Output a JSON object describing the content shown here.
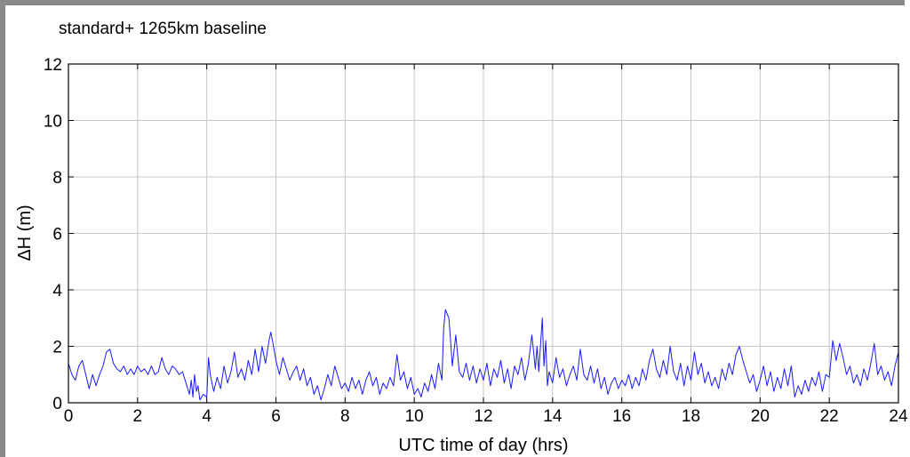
{
  "chart_data": {
    "type": "line",
    "title": "standard+ 1265km baseline",
    "xlabel": "UTC time of day (hrs)",
    "ylabel": "ΔH (m)",
    "xlim": [
      0,
      24
    ],
    "ylim": [
      0,
      12
    ],
    "x_ticks": [
      0,
      2,
      4,
      6,
      8,
      10,
      12,
      14,
      16,
      18,
      20,
      22,
      24
    ],
    "y_ticks": [
      0,
      2,
      4,
      6,
      8,
      10,
      12
    ],
    "grid": true,
    "line_color": "#1a1aff",
    "grid_color": "#c8c8c8",
    "series": [
      {
        "points": [
          [
            0.0,
            1.4
          ],
          [
            0.1,
            1.0
          ],
          [
            0.2,
            0.8
          ],
          [
            0.3,
            1.3
          ],
          [
            0.4,
            1.5
          ],
          [
            0.5,
            1.0
          ],
          [
            0.6,
            0.5
          ],
          [
            0.7,
            1.0
          ],
          [
            0.8,
            0.6
          ],
          [
            0.9,
            1.0
          ],
          [
            1.0,
            1.3
          ],
          [
            1.1,
            1.8
          ],
          [
            1.2,
            1.9
          ],
          [
            1.3,
            1.4
          ],
          [
            1.4,
            1.2
          ],
          [
            1.5,
            1.1
          ],
          [
            1.6,
            1.3
          ],
          [
            1.7,
            1.0
          ],
          [
            1.8,
            1.2
          ],
          [
            1.9,
            1.0
          ],
          [
            2.0,
            1.3
          ],
          [
            2.1,
            1.1
          ],
          [
            2.2,
            1.2
          ],
          [
            2.3,
            1.0
          ],
          [
            2.4,
            1.3
          ],
          [
            2.5,
            1.0
          ],
          [
            2.6,
            1.1
          ],
          [
            2.7,
            1.6
          ],
          [
            2.8,
            1.2
          ],
          [
            2.9,
            1.0
          ],
          [
            3.0,
            1.3
          ],
          [
            3.1,
            1.2
          ],
          [
            3.2,
            1.0
          ],
          [
            3.3,
            1.1
          ],
          [
            3.4,
            0.7
          ],
          [
            3.5,
            0.3
          ],
          [
            3.55,
            0.8
          ],
          [
            3.6,
            0.2
          ],
          [
            3.65,
            1.0
          ],
          [
            3.7,
            0.4
          ],
          [
            3.75,
            0.6
          ],
          [
            3.8,
            0.1
          ],
          [
            3.9,
            0.3
          ],
          [
            4.0,
            0.2
          ],
          [
            4.05,
            1.6
          ],
          [
            4.1,
            1.0
          ],
          [
            4.2,
            0.4
          ],
          [
            4.3,
            0.9
          ],
          [
            4.4,
            0.5
          ],
          [
            4.5,
            1.3
          ],
          [
            4.6,
            0.7
          ],
          [
            4.7,
            1.1
          ],
          [
            4.8,
            1.8
          ],
          [
            4.9,
            0.9
          ],
          [
            5.0,
            1.2
          ],
          [
            5.1,
            0.8
          ],
          [
            5.2,
            1.5
          ],
          [
            5.3,
            1.0
          ],
          [
            5.4,
            1.9
          ],
          [
            5.5,
            1.1
          ],
          [
            5.6,
            2.0
          ],
          [
            5.7,
            1.4
          ],
          [
            5.8,
            2.2
          ],
          [
            5.85,
            2.5
          ],
          [
            5.9,
            2.2
          ],
          [
            6.0,
            1.5
          ],
          [
            6.1,
            1.0
          ],
          [
            6.2,
            1.6
          ],
          [
            6.3,
            1.2
          ],
          [
            6.4,
            0.8
          ],
          [
            6.5,
            1.1
          ],
          [
            6.6,
            1.3
          ],
          [
            6.7,
            0.8
          ],
          [
            6.8,
            1.2
          ],
          [
            6.9,
            0.6
          ],
          [
            7.0,
            0.9
          ],
          [
            7.1,
            0.3
          ],
          [
            7.2,
            0.6
          ],
          [
            7.3,
            0.1
          ],
          [
            7.4,
            0.5
          ],
          [
            7.5,
            1.0
          ],
          [
            7.6,
            0.6
          ],
          [
            7.7,
            1.3
          ],
          [
            7.8,
            0.9
          ],
          [
            7.9,
            0.5
          ],
          [
            8.0,
            0.7
          ],
          [
            8.1,
            0.4
          ],
          [
            8.2,
            0.9
          ],
          [
            8.3,
            0.5
          ],
          [
            8.4,
            0.8
          ],
          [
            8.5,
            0.3
          ],
          [
            8.6,
            0.8
          ],
          [
            8.7,
            1.1
          ],
          [
            8.8,
            0.6
          ],
          [
            8.9,
            0.9
          ],
          [
            9.0,
            0.3
          ],
          [
            9.1,
            0.7
          ],
          [
            9.2,
            0.5
          ],
          [
            9.3,
            0.9
          ],
          [
            9.4,
            0.6
          ],
          [
            9.5,
            1.7
          ],
          [
            9.6,
            0.8
          ],
          [
            9.7,
            1.1
          ],
          [
            9.8,
            0.5
          ],
          [
            9.9,
            0.9
          ],
          [
            10.0,
            0.3
          ],
          [
            10.1,
            0.5
          ],
          [
            10.2,
            0.2
          ],
          [
            10.3,
            0.7
          ],
          [
            10.4,
            0.4
          ],
          [
            10.5,
            1.0
          ],
          [
            10.6,
            0.5
          ],
          [
            10.7,
            1.4
          ],
          [
            10.8,
            0.8
          ],
          [
            10.85,
            2.6
          ],
          [
            10.9,
            3.3
          ],
          [
            11.0,
            3.0
          ],
          [
            11.05,
            2.2
          ],
          [
            11.1,
            1.3
          ],
          [
            11.2,
            2.4
          ],
          [
            11.3,
            1.1
          ],
          [
            11.4,
            0.9
          ],
          [
            11.5,
            1.4
          ],
          [
            11.6,
            0.8
          ],
          [
            11.7,
            1.3
          ],
          [
            11.8,
            0.7
          ],
          [
            11.9,
            1.2
          ],
          [
            12.0,
            0.8
          ],
          [
            12.1,
            1.4
          ],
          [
            12.2,
            0.6
          ],
          [
            12.3,
            1.2
          ],
          [
            12.4,
            0.9
          ],
          [
            12.5,
            1.5
          ],
          [
            12.6,
            0.7
          ],
          [
            12.7,
            1.2
          ],
          [
            12.8,
            0.5
          ],
          [
            12.9,
            1.3
          ],
          [
            13.0,
            1.0
          ],
          [
            13.1,
            1.6
          ],
          [
            13.2,
            0.8
          ],
          [
            13.3,
            1.4
          ],
          [
            13.4,
            2.4
          ],
          [
            13.5,
            1.2
          ],
          [
            13.55,
            2.0
          ],
          [
            13.6,
            1.1
          ],
          [
            13.7,
            3.0
          ],
          [
            13.75,
            1.3
          ],
          [
            13.8,
            2.2
          ],
          [
            13.85,
            0.6
          ],
          [
            13.9,
            1.1
          ],
          [
            14.0,
            0.7
          ],
          [
            14.1,
            1.6
          ],
          [
            14.2,
            0.9
          ],
          [
            14.3,
            1.2
          ],
          [
            14.4,
            0.6
          ],
          [
            14.5,
            1.0
          ],
          [
            14.6,
            1.3
          ],
          [
            14.7,
            0.8
          ],
          [
            14.8,
            1.9
          ],
          [
            14.9,
            1.0
          ],
          [
            15.0,
            0.8
          ],
          [
            15.1,
            1.3
          ],
          [
            15.2,
            0.7
          ],
          [
            15.3,
            1.2
          ],
          [
            15.4,
            0.5
          ],
          [
            15.5,
            0.9
          ],
          [
            15.6,
            0.3
          ],
          [
            15.7,
            0.7
          ],
          [
            15.8,
            0.9
          ],
          [
            15.9,
            0.5
          ],
          [
            16.0,
            0.8
          ],
          [
            16.1,
            0.6
          ],
          [
            16.2,
            1.0
          ],
          [
            16.3,
            0.5
          ],
          [
            16.4,
            0.9
          ],
          [
            16.5,
            0.6
          ],
          [
            16.6,
            1.2
          ],
          [
            16.7,
            0.8
          ],
          [
            16.8,
            1.5
          ],
          [
            16.9,
            1.9
          ],
          [
            17.0,
            1.2
          ],
          [
            17.1,
            0.9
          ],
          [
            17.2,
            1.5
          ],
          [
            17.3,
            1.0
          ],
          [
            17.4,
            2.0
          ],
          [
            17.5,
            1.1
          ],
          [
            17.6,
            0.8
          ],
          [
            17.7,
            1.4
          ],
          [
            17.8,
            0.6
          ],
          [
            17.9,
            1.3
          ],
          [
            18.0,
            0.8
          ],
          [
            18.1,
            1.8
          ],
          [
            18.2,
            1.0
          ],
          [
            18.3,
            1.4
          ],
          [
            18.4,
            0.7
          ],
          [
            18.5,
            1.1
          ],
          [
            18.6,
            0.6
          ],
          [
            18.7,
            0.9
          ],
          [
            18.8,
            0.5
          ],
          [
            18.9,
            1.2
          ],
          [
            19.0,
            0.8
          ],
          [
            19.1,
            1.4
          ],
          [
            19.2,
            1.0
          ],
          [
            19.3,
            1.7
          ],
          [
            19.4,
            2.0
          ],
          [
            19.5,
            1.5
          ],
          [
            19.6,
            1.1
          ],
          [
            19.7,
            0.7
          ],
          [
            19.8,
            1.0
          ],
          [
            19.9,
            0.4
          ],
          [
            20.0,
            0.8
          ],
          [
            20.1,
            1.3
          ],
          [
            20.2,
            0.6
          ],
          [
            20.3,
            1.1
          ],
          [
            20.4,
            0.4
          ],
          [
            20.5,
            0.9
          ],
          [
            20.6,
            0.5
          ],
          [
            20.7,
            1.2
          ],
          [
            20.8,
            0.6
          ],
          [
            20.9,
            1.3
          ],
          [
            21.0,
            0.2
          ],
          [
            21.1,
            0.6
          ],
          [
            21.2,
            0.3
          ],
          [
            21.3,
            0.8
          ],
          [
            21.4,
            0.4
          ],
          [
            21.5,
            0.9
          ],
          [
            21.6,
            0.6
          ],
          [
            21.7,
            1.1
          ],
          [
            21.8,
            0.4
          ],
          [
            21.9,
            1.0
          ],
          [
            22.0,
            0.9
          ],
          [
            22.1,
            2.2
          ],
          [
            22.2,
            1.5
          ],
          [
            22.3,
            2.1
          ],
          [
            22.4,
            1.6
          ],
          [
            22.5,
            1.0
          ],
          [
            22.6,
            1.3
          ],
          [
            22.7,
            0.7
          ],
          [
            22.8,
            1.0
          ],
          [
            22.9,
            0.6
          ],
          [
            23.0,
            1.2
          ],
          [
            23.1,
            0.8
          ],
          [
            23.2,
            1.4
          ],
          [
            23.3,
            2.1
          ],
          [
            23.4,
            1.0
          ],
          [
            23.5,
            1.3
          ],
          [
            23.6,
            0.8
          ],
          [
            23.7,
            1.1
          ],
          [
            23.8,
            0.6
          ],
          [
            23.9,
            1.3
          ],
          [
            24.0,
            1.8
          ]
        ]
      }
    ]
  }
}
